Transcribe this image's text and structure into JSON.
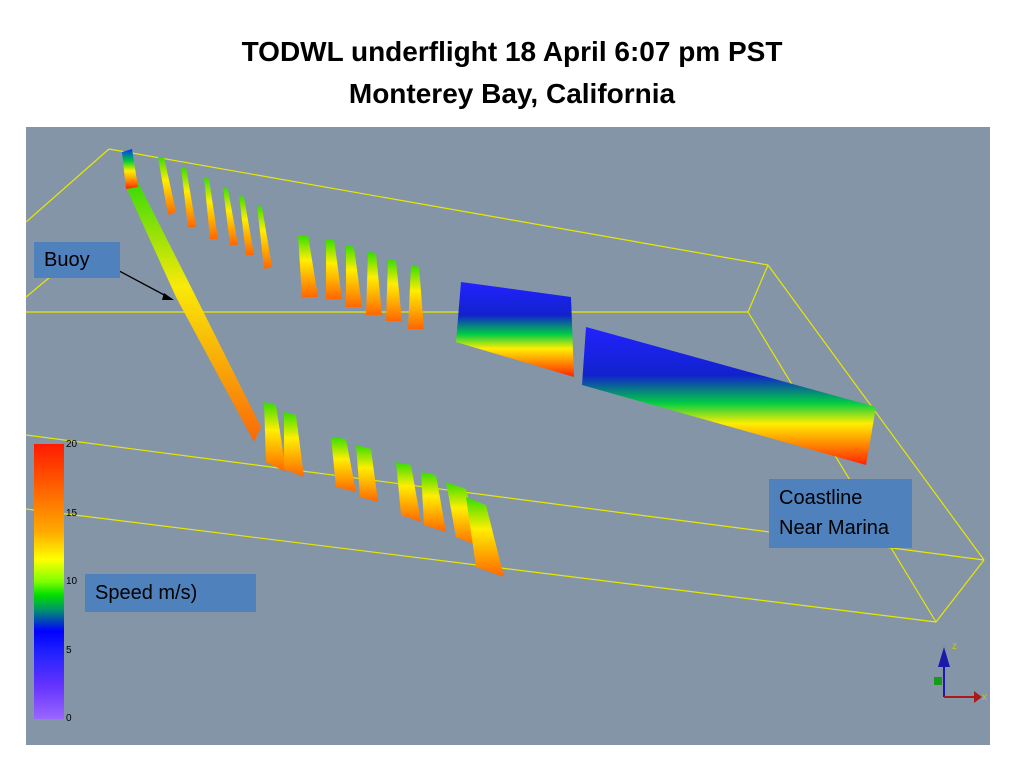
{
  "title": {
    "line1": "TODWL underflight 18 April 6:07 pm PST",
    "line2": "Monterey Bay, California"
  },
  "labels": {
    "buoy": "Buoy",
    "coastline_line1": "Coastline",
    "coastline_line2": "Near Marina",
    "speed": "Speed m/s)"
  },
  "colorbar": {
    "ticks": [
      "20",
      "15",
      "10",
      "5",
      "0"
    ]
  },
  "axes_gizmo": {
    "z": "z",
    "x": "x"
  },
  "colors": {
    "background": "#8495a8",
    "box_lines": "#e8e800",
    "label_fill": "#4f81bd"
  }
}
